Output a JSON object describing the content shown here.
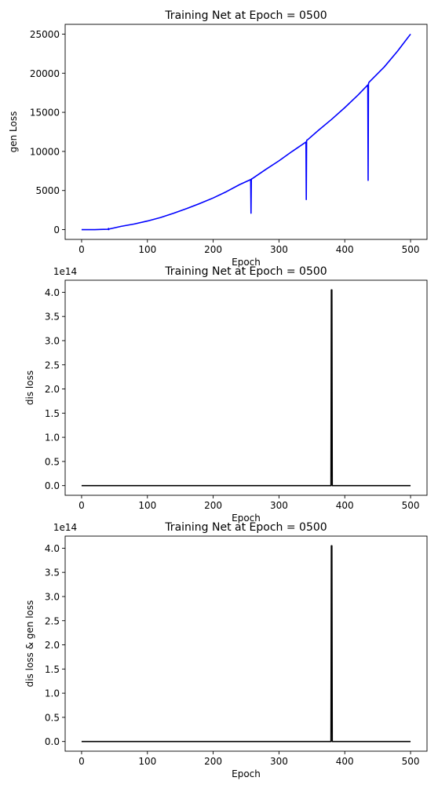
{
  "chart_data": [
    {
      "type": "line",
      "title": "Training Net at Epoch = 0500",
      "xlabel": "Epoch",
      "ylabel": "gen Loss",
      "offset_text": "",
      "xlim": [
        -25,
        525
      ],
      "ylim": [
        -1250,
        26250
      ],
      "xticks": [
        0,
        100,
        200,
        300,
        400,
        500
      ],
      "yticks": [
        0,
        5000,
        10000,
        15000,
        20000,
        25000
      ],
      "ytick_labels": [
        "0",
        "5000",
        "10000",
        "15000",
        "20000",
        "25000"
      ],
      "color": "#0000ff",
      "series": [
        {
          "x": [
            0,
            20,
            40,
            41,
            41,
            42,
            60,
            80,
            100,
            120,
            140,
            160,
            180,
            200,
            220,
            240,
            257,
            257.5,
            258,
            258.5,
            259,
            280,
            300,
            320,
            341,
            341.5,
            342,
            342.5,
            343,
            360,
            380,
            400,
            420,
            435,
            435.5,
            436,
            436.5,
            437,
            460,
            480,
            500
          ],
          "y": [
            0,
            0,
            50,
            150,
            0,
            80,
            420,
            720,
            1100,
            1550,
            2100,
            2700,
            3350,
            4050,
            4850,
            5750,
            6400,
            2100,
            6450,
            6500,
            6500,
            7700,
            8800,
            10000,
            11200,
            3850,
            11350,
            11450,
            11450,
            12700,
            14100,
            15600,
            17200,
            18500,
            6300,
            18600,
            18800,
            18850,
            20800,
            22800,
            25000
          ]
        }
      ]
    },
    {
      "type": "line",
      "title": "Training Net at Epoch = 0500",
      "xlabel": "Epoch",
      "ylabel": "dis loss",
      "offset_text": "1e14",
      "xlim": [
        -25,
        525
      ],
      "ylim": [
        -0.2,
        4.25
      ],
      "xticks": [
        0,
        100,
        200,
        300,
        400,
        500
      ],
      "yticks": [
        0,
        0.5,
        1,
        1.5,
        2,
        2.5,
        3,
        3.5,
        4
      ],
      "ytick_labels": [
        "0.0",
        "0.5",
        "1.0",
        "1.5",
        "2.0",
        "2.5",
        "3.0",
        "3.5",
        "4.0"
      ],
      "color": "#000000",
      "series": [
        {
          "x": [
            0,
            378,
            379,
            379.6,
            380,
            380.4,
            381,
            382,
            500
          ],
          "y": [
            0,
            0,
            0,
            4.05,
            0.2,
            4.05,
            0,
            0,
            0
          ]
        }
      ]
    },
    {
      "type": "line",
      "title": "Training Net at Epoch = 0500",
      "xlabel": "Epoch",
      "ylabel": "dis loss & gen loss",
      "offset_text": "1e14",
      "xlim": [
        -25,
        525
      ],
      "ylim": [
        -0.2,
        4.25
      ],
      "xticks": [
        0,
        100,
        200,
        300,
        400,
        500
      ],
      "yticks": [
        0,
        0.5,
        1,
        1.5,
        2,
        2.5,
        3,
        3.5,
        4
      ],
      "ytick_labels": [
        "0.0",
        "0.5",
        "1.0",
        "1.5",
        "2.0",
        "2.5",
        "3.0",
        "3.5",
        "4.0"
      ],
      "color": "#000000",
      "series": [
        {
          "x": [
            0,
            378,
            379,
            379.6,
            380,
            380.4,
            381,
            382,
            500
          ],
          "y": [
            0,
            0,
            0,
            4.05,
            0.2,
            4.05,
            0,
            0,
            0
          ]
        }
      ]
    }
  ]
}
